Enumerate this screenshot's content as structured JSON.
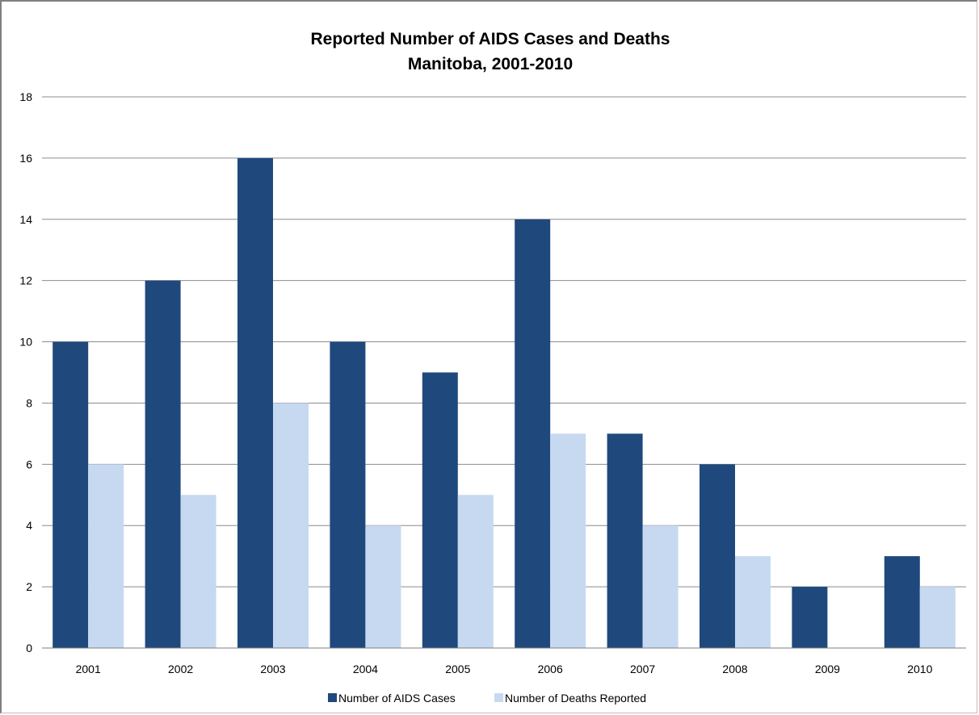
{
  "chart_data": {
    "type": "bar",
    "title": "Reported Number of AIDS Cases and Deaths",
    "subtitle": "Manitoba, 2001-2010",
    "xlabel": "",
    "ylabel": "",
    "categories": [
      "2001",
      "2002",
      "2003",
      "2004",
      "2005",
      "2006",
      "2007",
      "2008",
      "2009",
      "2010"
    ],
    "series": [
      {
        "name": "Number of AIDS Cases",
        "values": [
          10,
          12,
          16,
          10,
          9,
          14,
          7,
          6,
          2,
          3
        ],
        "color": "#1f497d"
      },
      {
        "name": "Number of Deaths Reported",
        "values": [
          6,
          5,
          8,
          4,
          5,
          7,
          4,
          3,
          0,
          2
        ],
        "color": "#c6d9f1"
      }
    ],
    "ylim": [
      0,
      18
    ],
    "yticks": [
      "0",
      "2",
      "4",
      "6",
      "8",
      "10",
      "12",
      "14",
      "16",
      "18"
    ],
    "grid": true,
    "legend_position": "bottom"
  }
}
